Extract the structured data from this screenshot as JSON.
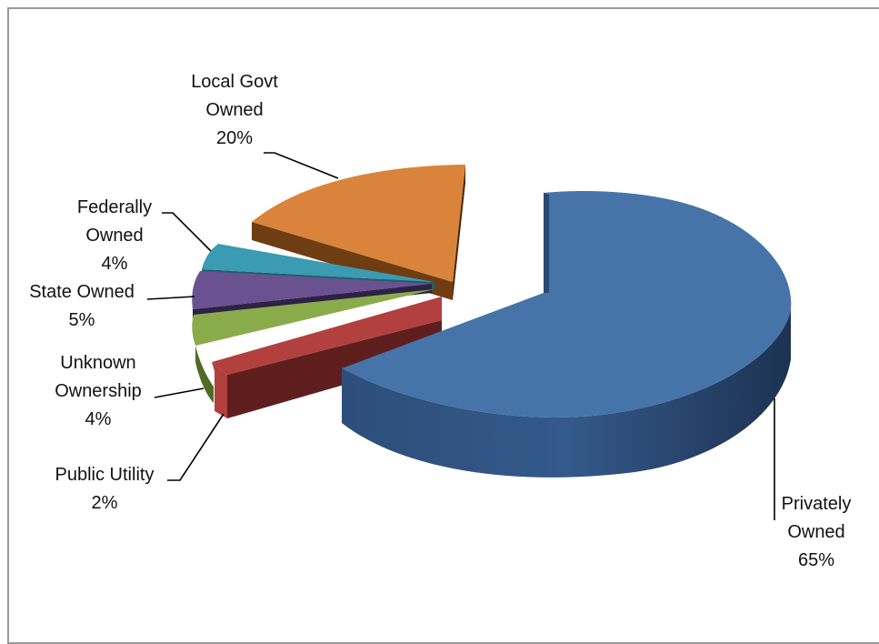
{
  "chart_data": {
    "type": "pie",
    "style": "3d-exploded",
    "title": "",
    "legend": "none",
    "slices": [
      {
        "name": "Privately Owned",
        "lines": [
          "Privately",
          "Owned"
        ],
        "value": 65,
        "pct": "65%",
        "color": "#4674a8",
        "side": "#2a4a73"
      },
      {
        "name": "Public Utility",
        "lines": [
          "Public Utility"
        ],
        "value": 2,
        "pct": "2%",
        "color": "#b2403e",
        "side": "#6b2222"
      },
      {
        "name": "Unknown Ownership",
        "lines": [
          "Unknown",
          "Ownership"
        ],
        "value": 4,
        "pct": "4%",
        "color": "#8aab4a",
        "side": "#506b26"
      },
      {
        "name": "State Owned",
        "lines": [
          "State Owned"
        ],
        "value": 5,
        "pct": "5%",
        "color": "#6a5290",
        "side": "#3c2c55"
      },
      {
        "name": "Federally Owned",
        "lines": [
          "Federally",
          "Owned"
        ],
        "value": 4,
        "pct": "4%",
        "color": "#3a9bb2",
        "side": "#1f5f70"
      },
      {
        "name": "Local Govt Owned",
        "lines": [
          "Local Govt",
          "Owned"
        ],
        "value": 20,
        "pct": "20%",
        "color": "#d9843a",
        "side": "#6e3d12"
      }
    ]
  }
}
